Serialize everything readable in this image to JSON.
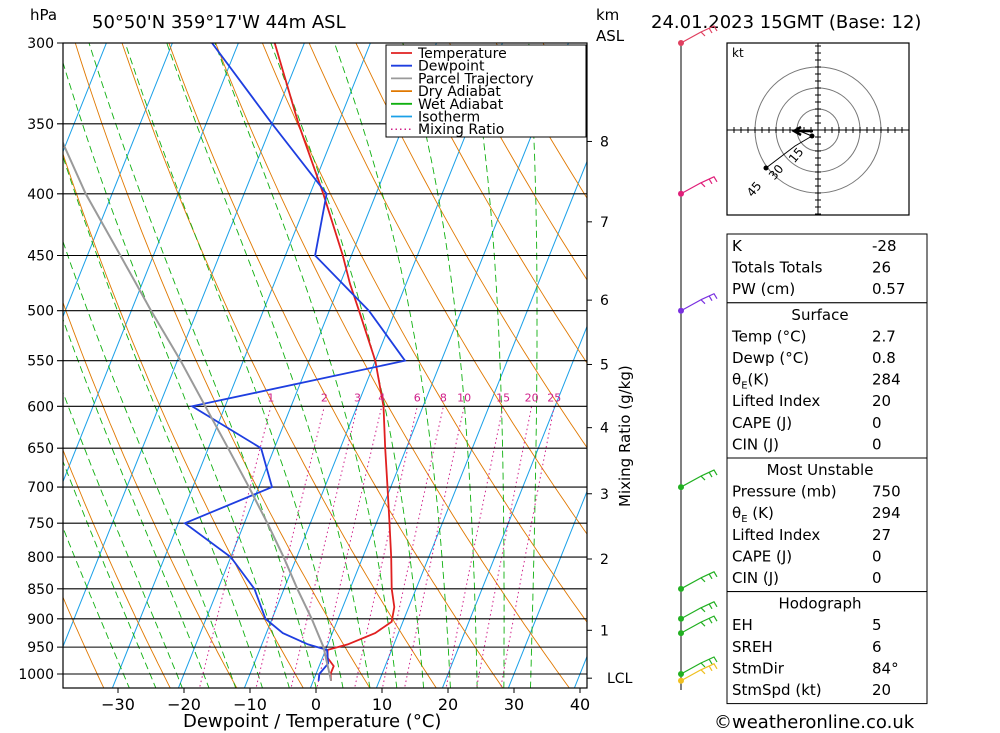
{
  "header": {
    "pressure_unit": "hPa",
    "location": "50°50'N  359°17'W  44m  ASL",
    "height_unit_line1": "km",
    "height_unit_line2": "ASL",
    "datetime": "24.01.2023  15GMT  (Base: 12)"
  },
  "footer": {
    "credit": "©weatheronline.co.uk"
  },
  "chart_data": {
    "type": "line",
    "title": "50°50'N  359°17'W  44m  ASL",
    "xlabel": "Dewpoint / Temperature (°C)",
    "ylabel": "hPa",
    "right_axis_label": "Mixing Ratio (g/kg)",
    "x_ticks": [
      -30,
      -20,
      -10,
      0,
      10,
      20,
      30,
      40
    ],
    "xlim": [
      -40,
      40
    ],
    "pressure_ticks": [
      300,
      350,
      400,
      450,
      500,
      550,
      600,
      650,
      700,
      750,
      800,
      850,
      900,
      950,
      1000
    ],
    "ylim": [
      1000,
      300
    ],
    "y_scale": "log",
    "grid": true,
    "height_km_ticks": [
      {
        "label": "8",
        "p": 362
      },
      {
        "label": "7",
        "p": 422
      },
      {
        "label": "6",
        "p": 490
      },
      {
        "label": "5",
        "p": 554
      },
      {
        "label": "4",
        "p": 625
      },
      {
        "label": "3",
        "p": 709
      },
      {
        "label": "2",
        "p": 803
      },
      {
        "label": "1",
        "p": 920
      },
      {
        "label": "LCL",
        "p": 1008
      }
    ],
    "mixing_ratio_labels": [
      "1",
      "2",
      "3",
      "4",
      "6",
      "8",
      "10",
      "15",
      "20",
      "25"
    ],
    "legend": {
      "placement": "top-right",
      "entries": [
        {
          "name": "Temperature",
          "color": "#e02020",
          "style": "solid"
        },
        {
          "name": "Dewpoint",
          "color": "#1e3ee0",
          "style": "solid"
        },
        {
          "name": "Parcel Trajectory",
          "color": "#9a9a9a",
          "style": "solid"
        },
        {
          "name": "Dry Adiabat",
          "color": "#e07800",
          "style": "solid"
        },
        {
          "name": "Wet Adiabat",
          "color": "#10b010",
          "style": "solid"
        },
        {
          "name": "Isotherm",
          "color": "#1aa0e8",
          "style": "solid"
        },
        {
          "name": "Mixing Ratio",
          "color": "#d0208a",
          "style": "dotted"
        }
      ]
    },
    "series": [
      {
        "name": "Temperature",
        "color": "#e02020",
        "points": [
          [
            1013,
            2.7
          ],
          [
            1000,
            2.2
          ],
          [
            985,
            2.2
          ],
          [
            970,
            0.8
          ],
          [
            955,
            0.3
          ],
          [
            945,
            3.0
          ],
          [
            925,
            6.5
          ],
          [
            905,
            8.3
          ],
          [
            880,
            7.8
          ],
          [
            850,
            6.3
          ],
          [
            800,
            4.3
          ],
          [
            750,
            2.0
          ],
          [
            700,
            -0.5
          ],
          [
            650,
            -3.2
          ],
          [
            600,
            -6.0
          ],
          [
            550,
            -10.0
          ],
          [
            500,
            -15.5
          ],
          [
            475,
            -18.5
          ],
          [
            450,
            -21.3
          ],
          [
            400,
            -28.0
          ],
          [
            350,
            -36.0
          ],
          [
            300,
            -44.5
          ]
        ]
      },
      {
        "name": "Dewpoint",
        "color": "#1e3ee0",
        "points": [
          [
            1013,
            0.8
          ],
          [
            1000,
            0.5
          ],
          [
            980,
            1.2
          ],
          [
            955,
            0.2
          ],
          [
            945,
            -3.0
          ],
          [
            925,
            -7.5
          ],
          [
            900,
            -11.0
          ],
          [
            850,
            -14.5
          ],
          [
            800,
            -20.0
          ],
          [
            750,
            -29.0
          ],
          [
            700,
            -18.0
          ],
          [
            650,
            -22.0
          ],
          [
            600,
            -35.0
          ],
          [
            550,
            -5.5
          ],
          [
            500,
            -14.0
          ],
          [
            450,
            -25.5
          ],
          [
            400,
            -27.5
          ],
          [
            350,
            -40.0
          ],
          [
            300,
            -54.0
          ]
        ]
      },
      {
        "name": "Parcel Trajectory",
        "color": "#9a9a9a",
        "points": [
          [
            1013,
            2.7
          ],
          [
            950,
            -0.5
          ],
          [
            900,
            -4.0
          ],
          [
            850,
            -8.0
          ],
          [
            800,
            -12.0
          ],
          [
            750,
            -16.5
          ],
          [
            700,
            -21.5
          ],
          [
            650,
            -27.0
          ],
          [
            600,
            -33.0
          ],
          [
            550,
            -39.5
          ],
          [
            500,
            -47.0
          ],
          [
            450,
            -55.0
          ],
          [
            400,
            -64.0
          ],
          [
            350,
            -73.0
          ],
          [
            300,
            -83.0
          ]
        ]
      }
    ],
    "wind_barbs": [
      {
        "pressure": 300,
        "color": "#e04060"
      },
      {
        "pressure": 400,
        "color": "#e0207a"
      },
      {
        "pressure": 500,
        "color": "#7a30e0"
      },
      {
        "pressure": 700,
        "color": "#22b022"
      },
      {
        "pressure": 850,
        "color": "#22b022"
      },
      {
        "pressure": 900,
        "color": "#22b022"
      },
      {
        "pressure": 925,
        "color": "#22b022"
      },
      {
        "pressure": 1000,
        "color": "#22b022"
      },
      {
        "pressure": 1013,
        "color": "#f0c020"
      }
    ]
  },
  "hodograph": {
    "unit": "kt",
    "ring_labels": [
      "15",
      "30",
      "45"
    ]
  },
  "indices": [
    {
      "label": "K",
      "value": "-28"
    },
    {
      "label": "Totals Totals",
      "value": "26"
    },
    {
      "label": "PW (cm)",
      "value": "0.57"
    }
  ],
  "surface": {
    "heading": "Surface",
    "rows": [
      {
        "label": "Temp (°C)",
        "value": "2.7"
      },
      {
        "label": "Dewp (°C)",
        "value": "0.8"
      },
      {
        "label": "θE(K)",
        "value": "284"
      },
      {
        "label": "Lifted Index",
        "value": "20"
      },
      {
        "label": "CAPE (J)",
        "value": "0"
      },
      {
        "label": "CIN (J)",
        "value": "0"
      }
    ]
  },
  "most_unstable": {
    "heading": "Most Unstable",
    "rows": [
      {
        "label": "Pressure (mb)",
        "value": "750"
      },
      {
        "label": "θE (K)",
        "value": "294"
      },
      {
        "label": "Lifted Index",
        "value": "27"
      },
      {
        "label": "CAPE (J)",
        "value": "0"
      },
      {
        "label": "CIN (J)",
        "value": "0"
      }
    ]
  },
  "hodograph_table": {
    "heading": "Hodograph",
    "rows": [
      {
        "label": "EH",
        "value": "5"
      },
      {
        "label": "SREH",
        "value": "6"
      },
      {
        "label": "StmDir",
        "value": "84°"
      },
      {
        "label": "StmSpd (kt)",
        "value": "20"
      }
    ]
  }
}
